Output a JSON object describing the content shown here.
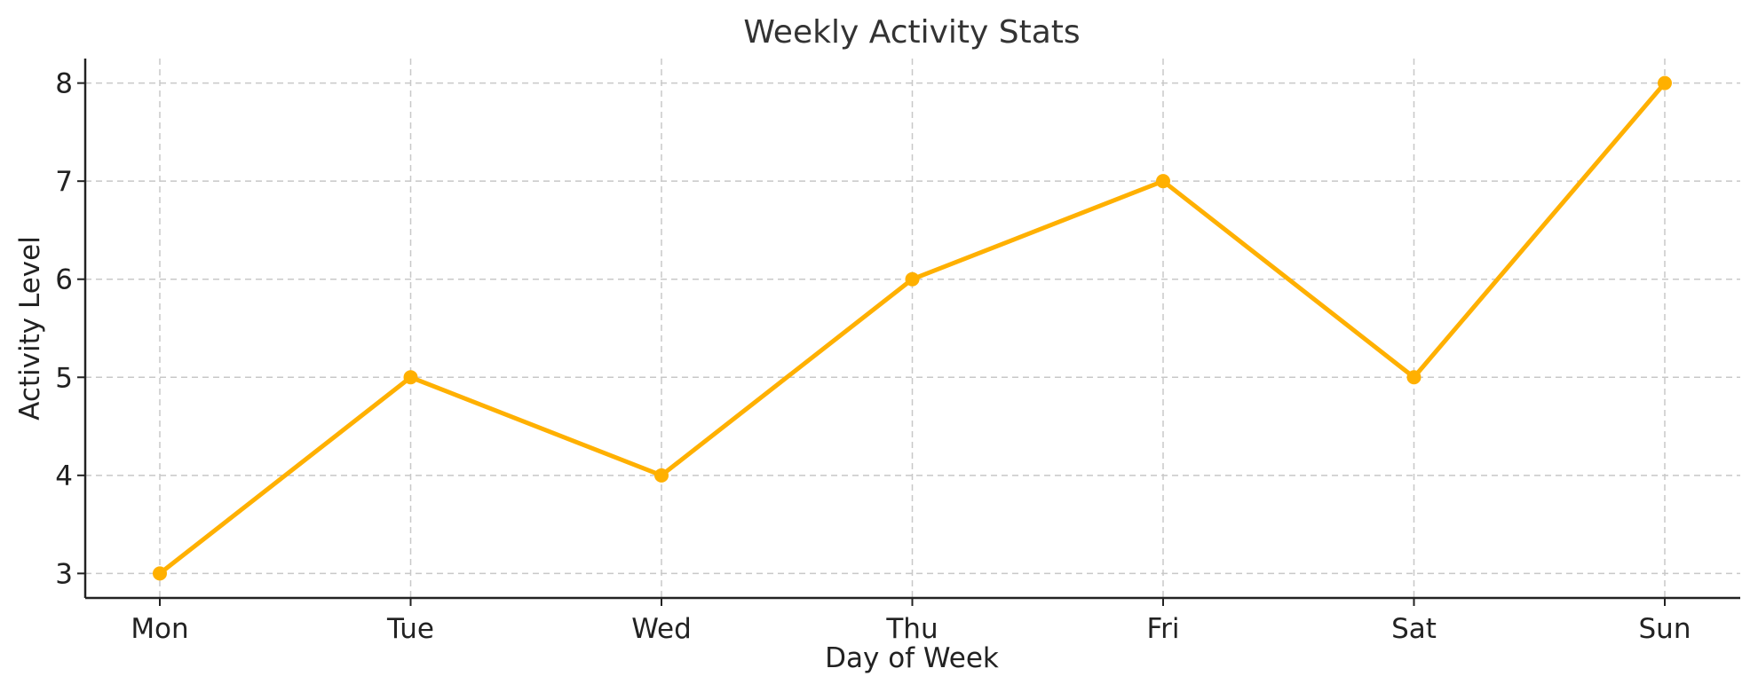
{
  "chart_data": {
    "type": "line",
    "title": "Weekly Activity Stats",
    "xlabel": "Day of Week",
    "ylabel": "Activity Level",
    "categories": [
      "Mon",
      "Tue",
      "Wed",
      "Thu",
      "Fri",
      "Sat",
      "Sun"
    ],
    "series": [
      {
        "name": "Activity Level",
        "values": [
          3,
          5,
          4,
          6,
          7,
          5,
          8
        ],
        "color": "#FFB000"
      }
    ],
    "ylim": [
      2.75,
      8.25
    ],
    "yticks": [
      3,
      4,
      5,
      6,
      7,
      8
    ],
    "grid": true,
    "legend": false
  }
}
